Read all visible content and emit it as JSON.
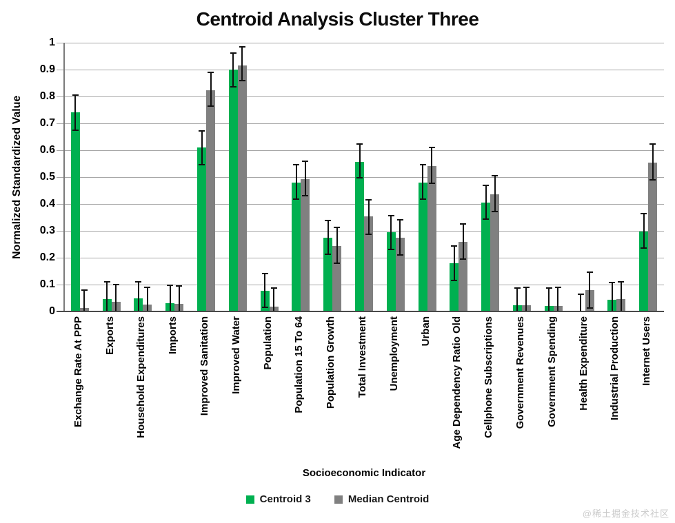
{
  "chart_data": {
    "type": "bar",
    "title": "Centroid Analysis Cluster Three",
    "xlabel": "Socioeconomic Indicator",
    "ylabel": "Normalized Standardized Value",
    "ylim": [
      0,
      1
    ],
    "ytick_step": 0.1,
    "yticks": [
      "0",
      "0.1",
      "0.2",
      "0.3",
      "0.4",
      "0.5",
      "0.6",
      "0.7",
      "0.8",
      "0.9",
      "1"
    ],
    "grid": true,
    "legend_position": "bottom",
    "error_bars": true,
    "categories": [
      "Exchange Rate At PPP",
      "Exports",
      "Household Expenditures",
      "Imports",
      "Improved Sanitation",
      "Improved Water",
      "Population",
      "Population 15 To 64",
      "Population Growth",
      "Total Investment",
      "Unemployment",
      "Urban",
      "Age Dependency Ratio Old",
      "Cellphone Subscriptions",
      "Government Revenues",
      "Government Spending",
      "Health Expenditure",
      "Industrial Production",
      "Internet Users"
    ],
    "series": [
      {
        "name": "Centroid 3",
        "color": "#00B050",
        "values": [
          0.74,
          0.045,
          0.048,
          0.032,
          0.61,
          0.9,
          0.077,
          0.48,
          0.275,
          0.556,
          0.296,
          0.48,
          0.18,
          0.405,
          0.022,
          0.021,
          0.002,
          0.044,
          0.297
        ],
        "err_low": [
          0.675,
          0,
          0,
          0,
          0.546,
          0.836,
          0.016,
          0.419,
          0.213,
          0.497,
          0.232,
          0.418,
          0.116,
          0.344,
          0,
          0,
          0,
          0,
          0.236
        ],
        "err_high": [
          0.805,
          0.11,
          0.11,
          0.097,
          0.672,
          0.961,
          0.142,
          0.545,
          0.338,
          0.622,
          0.357,
          0.546,
          0.244,
          0.469,
          0.087,
          0.086,
          0.065,
          0.108,
          0.365
        ]
      },
      {
        "name": "Median Centroid",
        "color": "#808080",
        "values": [
          0.013,
          0.035,
          0.025,
          0.029,
          0.823,
          0.916,
          0.019,
          0.492,
          0.244,
          0.353,
          0.275,
          0.541,
          0.259,
          0.436,
          0.022,
          0.021,
          0.08,
          0.045,
          0.553
        ],
        "err_low": [
          0,
          0,
          0,
          0,
          0.763,
          0.858,
          0,
          0.43,
          0.18,
          0.287,
          0.209,
          0.477,
          0.194,
          0.373,
          0,
          0,
          0.014,
          0,
          0.49
        ],
        "err_high": [
          0.08,
          0.1,
          0.09,
          0.096,
          0.891,
          0.984,
          0.086,
          0.558,
          0.313,
          0.415,
          0.341,
          0.61,
          0.326,
          0.504,
          0.091,
          0.09,
          0.146,
          0.111,
          0.622
        ]
      }
    ]
  },
  "watermark": {
    "text": "@稀土掘金技术社区"
  }
}
